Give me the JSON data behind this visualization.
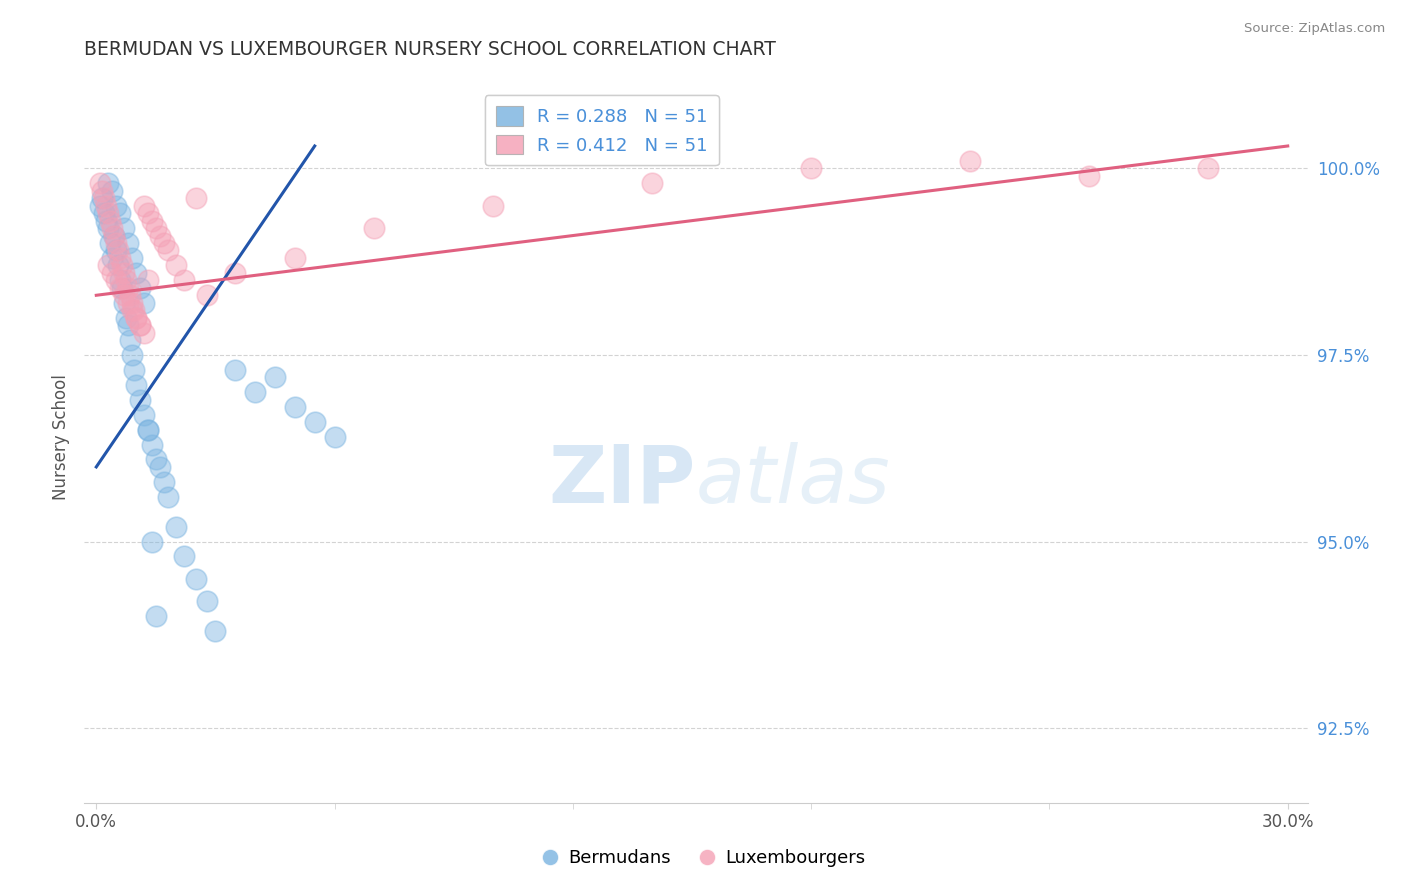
{
  "title": "BERMUDAN VS LUXEMBOURGER NURSERY SCHOOL CORRELATION CHART",
  "source_text": "Source: ZipAtlas.com",
  "ylabel": "Nursery School",
  "xlim_min": -0.3,
  "xlim_max": 30.5,
  "ylim_min": 91.5,
  "ylim_max": 101.3,
  "x_ticks": [
    0,
    30
  ],
  "x_tick_labels": [
    "0.0%",
    "30.0%"
  ],
  "y_ticks": [
    92.5,
    95.0,
    97.5,
    100.0
  ],
  "y_tick_labels": [
    "92.5%",
    "95.0%",
    "97.5%",
    "100.0%"
  ],
  "blue_color": "#7ab3e0",
  "pink_color": "#f4a0b5",
  "blue_line_color": "#2255aa",
  "pink_line_color": "#e06080",
  "legend_text_color": "#4a90d9",
  "watermark_color": "#c8dff0",
  "legend_label_blue": "Bermudans",
  "legend_label_pink": "Luxembourgers",
  "blue_scatter_x": [
    0.1,
    0.15,
    0.2,
    0.25,
    0.3,
    0.35,
    0.4,
    0.45,
    0.5,
    0.55,
    0.6,
    0.65,
    0.7,
    0.75,
    0.8,
    0.85,
    0.9,
    0.95,
    1.0,
    1.1,
    1.2,
    1.3,
    1.4,
    1.5,
    1.6,
    1.7,
    1.8,
    2.0,
    2.2,
    2.5,
    2.8,
    3.0,
    3.5,
    4.0,
    4.5,
    5.0,
    5.5,
    6.0,
    0.3,
    0.4,
    0.5,
    0.6,
    0.7,
    0.8,
    0.9,
    1.0,
    1.1,
    1.2,
    1.3,
    1.4,
    1.5
  ],
  "blue_scatter_y": [
    99.5,
    99.6,
    99.4,
    99.3,
    99.2,
    99.0,
    98.8,
    99.1,
    98.9,
    98.7,
    98.5,
    98.4,
    98.2,
    98.0,
    97.9,
    97.7,
    97.5,
    97.3,
    97.1,
    96.9,
    96.7,
    96.5,
    96.3,
    96.1,
    96.0,
    95.8,
    95.6,
    95.2,
    94.8,
    94.5,
    94.2,
    93.8,
    97.3,
    97.0,
    97.2,
    96.8,
    96.6,
    96.4,
    99.8,
    99.7,
    99.5,
    99.4,
    99.2,
    99.0,
    98.8,
    98.6,
    98.4,
    98.2,
    96.5,
    95.0,
    94.0
  ],
  "pink_scatter_x": [
    0.1,
    0.15,
    0.2,
    0.25,
    0.3,
    0.35,
    0.4,
    0.45,
    0.5,
    0.55,
    0.6,
    0.65,
    0.7,
    0.75,
    0.8,
    0.85,
    0.9,
    0.95,
    1.0,
    1.1,
    1.2,
    1.3,
    1.4,
    1.5,
    1.6,
    1.7,
    1.8,
    2.0,
    2.2,
    2.5,
    2.8,
    3.5,
    5.0,
    7.0,
    10.0,
    14.0,
    18.0,
    22.0,
    25.0,
    28.0,
    0.3,
    0.4,
    0.5,
    0.6,
    0.7,
    0.8,
    0.9,
    1.0,
    1.1,
    1.2,
    1.3
  ],
  "pink_scatter_y": [
    99.8,
    99.7,
    99.6,
    99.5,
    99.4,
    99.3,
    99.2,
    99.1,
    99.0,
    98.9,
    98.8,
    98.7,
    98.6,
    98.5,
    98.4,
    98.3,
    98.2,
    98.1,
    98.0,
    97.9,
    99.5,
    99.4,
    99.3,
    99.2,
    99.1,
    99.0,
    98.9,
    98.7,
    98.5,
    99.6,
    98.3,
    98.6,
    98.8,
    99.2,
    99.5,
    99.8,
    100.0,
    100.1,
    99.9,
    100.0,
    98.7,
    98.6,
    98.5,
    98.4,
    98.3,
    98.2,
    98.1,
    98.0,
    97.9,
    97.8,
    98.5
  ],
  "blue_trend_x0": 0.0,
  "blue_trend_x1": 5.5,
  "blue_trend_y0": 96.0,
  "blue_trend_y1": 100.3,
  "pink_trend_x0": 0.0,
  "pink_trend_x1": 30.0,
  "pink_trend_y0": 98.3,
  "pink_trend_y1": 100.3
}
